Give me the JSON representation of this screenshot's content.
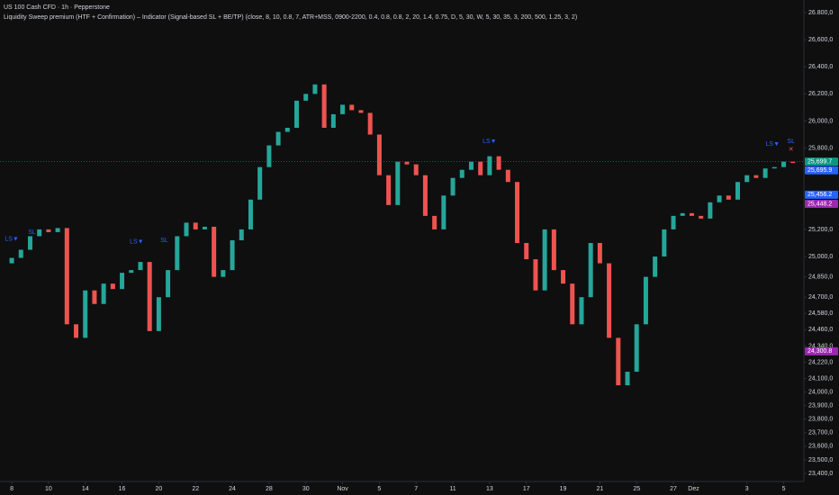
{
  "chart_data": {
    "type": "candlestick",
    "title": "US 100 Cash CFD · 1h · Pepperstone",
    "subtitle": "Liquidity Sweep premium (HTF + Confirmation) – Indicator (Signal-based SL + BE/TP) (close, 8, 10, 0.8, 7, ATR+MSS, 0900-2200, 0.4, 0.8, 0.8, 2, 20, 1.4, 0.75, D, 5, 30, W, 5, 30, 35, 3, 200, 500, 1.25, 3, 2)",
    "up_color": "#26a69a",
    "down_color": "#ef5350",
    "x": [
      0,
      0.5,
      1,
      1.5,
      2,
      2.5,
      3,
      3.5,
      4,
      4.5,
      5,
      5.5,
      6,
      6.5,
      7,
      7.5,
      8,
      8.5,
      9,
      9.5,
      10,
      10.5,
      11,
      11.5,
      12,
      12.5,
      13,
      13.5,
      14,
      14.5,
      15,
      15.5,
      16,
      16.5,
      17,
      17.5,
      18,
      18.5,
      19,
      19.5,
      20,
      20.5,
      21,
      21.5,
      22,
      22.5,
      23,
      23.5,
      24,
      24.5,
      25,
      25.5,
      26,
      26.5,
      27,
      27.5,
      28,
      28.5,
      29,
      29.5,
      30,
      30.5,
      31,
      31.5,
      32,
      32.5,
      33,
      33.5,
      34,
      34.5,
      35,
      35.5,
      36,
      36.5,
      37,
      37.5,
      38,
      38.5,
      39,
      39.5,
      40,
      40.5,
      41,
      41.5,
      42,
      42.5
    ],
    "open": [
      24950,
      24990,
      25050,
      25150,
      25200,
      25180,
      25210,
      24500,
      24400,
      24750,
      24650,
      24800,
      24760,
      24880,
      24900,
      24960,
      24450,
      24700,
      24900,
      25150,
      25250,
      25200,
      25220,
      24850,
      24900,
      25120,
      25200,
      25420,
      25660,
      25820,
      25920,
      25950,
      26150,
      26200,
      26270,
      25950,
      26050,
      26120,
      26080,
      26060,
      25900,
      25600,
      25380,
      25700,
      25680,
      25600,
      25300,
      25200,
      25450,
      25580,
      25640,
      25700,
      25600,
      25740,
      25640,
      25550,
      25100,
      24980,
      24750,
      25200,
      24900,
      24800,
      24500,
      24700,
      25100,
      24950,
      24400,
      24050,
      24150,
      24500,
      24850,
      25000,
      25200,
      25300,
      25320,
      25300,
      25280,
      25400,
      25450,
      25420,
      25550,
      25600,
      25580,
      25650,
      25660,
      25700
    ],
    "close": [
      24990,
      25050,
      25150,
      25200,
      25180,
      25210,
      24500,
      24400,
      24750,
      24650,
      24800,
      24760,
      24880,
      24900,
      24960,
      24450,
      24700,
      24900,
      25150,
      25250,
      25200,
      25220,
      24850,
      24900,
      25120,
      25200,
      25420,
      25660,
      25820,
      25920,
      25950,
      26150,
      26200,
      26270,
      25950,
      26050,
      26120,
      26080,
      26060,
      25900,
      25600,
      25380,
      25700,
      25680,
      25600,
      25300,
      25200,
      25450,
      25580,
      25640,
      25700,
      25600,
      25740,
      25640,
      25550,
      25100,
      24980,
      24750,
      25200,
      24900,
      24800,
      24500,
      24700,
      25100,
      24950,
      24400,
      24050,
      24150,
      24500,
      24850,
      25000,
      25200,
      25300,
      25320,
      25300,
      25280,
      25400,
      25450,
      25420,
      25550,
      25600,
      25580,
      25650,
      25660,
      25700,
      25690
    ],
    "xlim": [
      -0.64,
      43.1
    ],
    "ylim": [
      23340,
      26893
    ],
    "xticks": [
      {
        "value": 0,
        "label": "8"
      },
      {
        "value": 2,
        "label": "10"
      },
      {
        "value": 4,
        "label": "14"
      },
      {
        "value": 6,
        "label": "16"
      },
      {
        "value": 8,
        "label": "20"
      },
      {
        "value": 10,
        "label": "22"
      },
      {
        "value": 12,
        "label": "24"
      },
      {
        "value": 14,
        "label": "28"
      },
      {
        "value": 16,
        "label": "30"
      },
      {
        "value": 18,
        "label": "Nov"
      },
      {
        "value": 20,
        "label": "5"
      },
      {
        "value": 22,
        "label": "7"
      },
      {
        "value": 24,
        "label": "11"
      },
      {
        "value": 26,
        "label": "13"
      },
      {
        "value": 28,
        "label": "17"
      },
      {
        "value": 30,
        "label": "19"
      },
      {
        "value": 32,
        "label": "21"
      },
      {
        "value": 34,
        "label": "25"
      },
      {
        "value": 36,
        "label": "27"
      },
      {
        "value": 37.1,
        "label": "Dez"
      },
      {
        "value": 40,
        "label": "3"
      },
      {
        "value": 42,
        "label": "5"
      }
    ],
    "yticks": [
      {
        "value": 26800,
        "label": "26.800,0"
      },
      {
        "value": 26600,
        "label": "26,600,0"
      },
      {
        "value": 26400,
        "label": "26,400,0"
      },
      {
        "value": 26200,
        "label": "26,200,0"
      },
      {
        "value": 26000,
        "label": "26,000,0"
      },
      {
        "value": 25800,
        "label": "25,800,0"
      },
      {
        "value": 25200,
        "label": "25,200,0"
      },
      {
        "value": 25000,
        "label": "25,000,0"
      },
      {
        "value": 24850,
        "label": "24,850,0"
      },
      {
        "value": 24700,
        "label": "24,700,0"
      },
      {
        "value": 24580,
        "label": "24,580,0"
      },
      {
        "value": 24460,
        "label": "24,460,0"
      },
      {
        "value": 24340,
        "label": "24,340,0"
      },
      {
        "value": 24220,
        "label": "24,220,0"
      },
      {
        "value": 24100,
        "label": "24,100,0"
      },
      {
        "value": 24000,
        "label": "24,000,0"
      },
      {
        "value": 23900,
        "label": "23,900,0"
      },
      {
        "value": 23800,
        "label": "23,800,0"
      },
      {
        "value": 23700,
        "label": "23,700,0"
      },
      {
        "value": 23600,
        "label": "23,600,0"
      },
      {
        "value": 23500,
        "label": "23,500,0"
      },
      {
        "value": 23400,
        "label": "23,400,0"
      }
    ],
    "price_tags": [
      {
        "value": 25699.7,
        "label": "25,699.7",
        "color": "#089981"
      },
      {
        "value": 25695.9,
        "label": "25,695.9",
        "color": "#2962ff"
      },
      {
        "value": 25456.2,
        "label": "25,456.2",
        "color": "#2962ff"
      },
      {
        "value": 25448.2,
        "label": "25,448.2",
        "color": "#9c27b0"
      },
      {
        "value": 24300.8,
        "label": "24,300.8",
        "color": "#9c27b0"
      }
    ],
    "markers": [
      {
        "label": "LS▼",
        "x": 0,
        "y": 25130,
        "color": "#2962ff"
      },
      {
        "label": "SL",
        "x": 1.1,
        "y": 25180,
        "color": "#2962ff"
      },
      {
        "label": "LS▼",
        "x": 6.8,
        "y": 25110,
        "color": "#2962ff"
      },
      {
        "label": "SL",
        "x": 8.3,
        "y": 25120,
        "color": "#2962ff"
      },
      {
        "label": "LS▼",
        "x": 26,
        "y": 25850,
        "color": "#2962ff"
      },
      {
        "label": "LS▼",
        "x": 41.4,
        "y": 25830,
        "color": "#2962ff"
      },
      {
        "label": "SL",
        "x": 42.4,
        "y": 25850,
        "color": "#2962ff"
      },
      {
        "label": "✕",
        "x": 42.4,
        "y": 25790,
        "color": "#ef5350"
      }
    ]
  }
}
